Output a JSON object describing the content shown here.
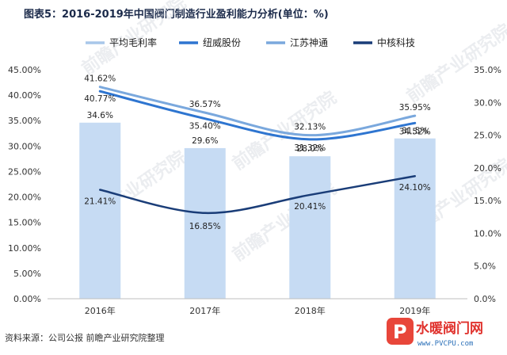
{
  "page": {
    "title": "图表5：2016-2019年中国阀门制造行业盈利能力分析(单位：%)",
    "source": "资料来源：公司公报 前瞻产业研究院整理",
    "watermark_text": "前瞻产业研究院",
    "logo": {
      "text": "水暖阀门网",
      "url": "www.PVCPU.com"
    }
  },
  "colors": {
    "bars": "#c6dbf3",
    "series": [
      "#a8c7ea",
      "#2e75d0",
      "#7aa8dd",
      "#1a3d78"
    ]
  },
  "chart_data": {
    "type": "bar+line",
    "categories": [
      "2016年",
      "2017年",
      "2018年",
      "2019年"
    ],
    "left_axis": {
      "min": 0,
      "max": 45,
      "step": 5,
      "ticks": [
        "0.00%",
        "5.00%",
        "10.00%",
        "15.00%",
        "20.00%",
        "25.00%",
        "30.00%",
        "35.00%",
        "40.00%",
        "45.00%"
      ]
    },
    "right_axis": {
      "min": 0,
      "max": 35,
      "step": 5,
      "ticks": [
        "0.0%",
        "5.0%",
        "10.0%",
        "15.0%",
        "20.0%",
        "25.0%",
        "30.0%",
        "35.0%"
      ]
    },
    "series": [
      {
        "name": "平均毛利率",
        "type": "bar",
        "axis": "left",
        "values": [
          34.6,
          29.6,
          28.0,
          31.5
        ],
        "labels": [
          "34.6%",
          "29.6%",
          "28.0%",
          "31.5%"
        ]
      },
      {
        "name": "纽威股份",
        "type": "line",
        "axis": "left",
        "values": [
          40.77,
          35.4,
          31.32,
          34.52
        ],
        "labels": [
          "40.77%",
          "35.40%",
          "31.32%",
          "34.52%"
        ]
      },
      {
        "name": "江苏神通",
        "type": "line",
        "axis": "left",
        "values": [
          41.62,
          36.57,
          32.13,
          35.95
        ],
        "labels": [
          "41.62%",
          "36.57%",
          "32.13%",
          "35.95%"
        ]
      },
      {
        "name": "中核科技",
        "type": "line",
        "axis": "left",
        "values": [
          21.41,
          16.85,
          20.41,
          24.1
        ],
        "labels": [
          "21.41%",
          "16.85%",
          "20.41%",
          "24.10%"
        ]
      }
    ],
    "legend_position": "top",
    "grid": false
  }
}
